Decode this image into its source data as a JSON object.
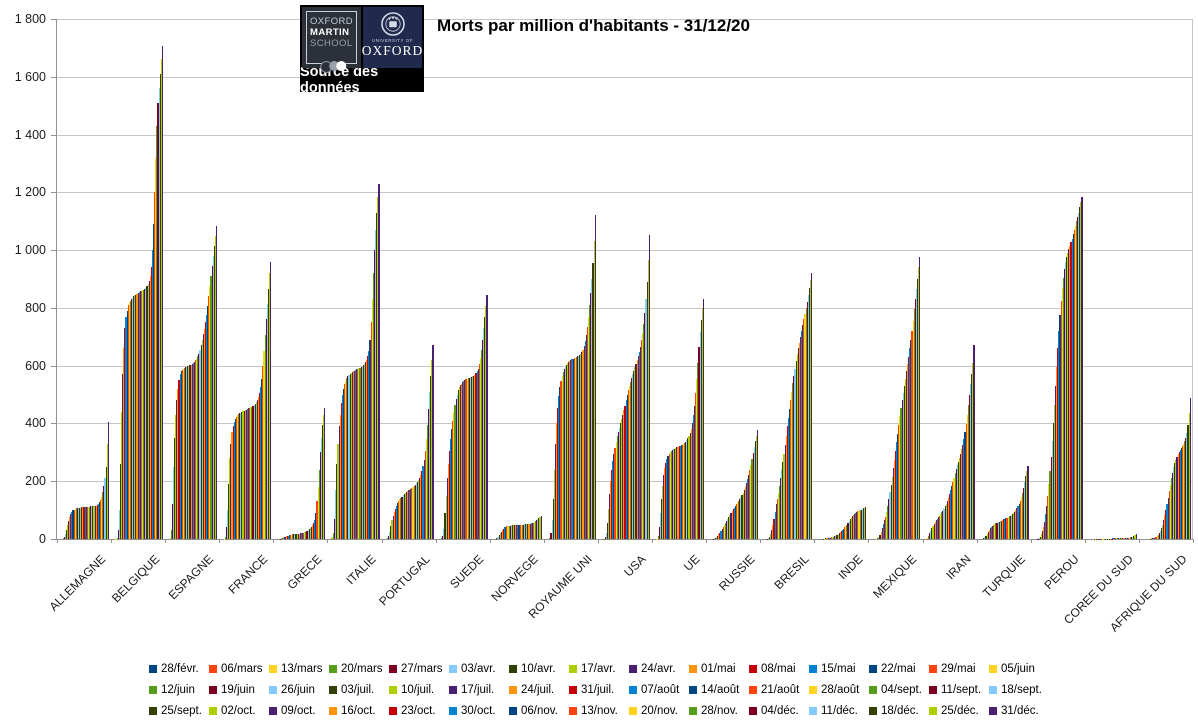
{
  "title": "Morts par million d'habitants - 31/12/20",
  "logo": {
    "line1": "OXFORD",
    "line2": "MARTIN",
    "line3": "SCHOOL",
    "university_of": "UNIVERSITY OF",
    "oxford": "OXFORD",
    "caption": "Source des données"
  },
  "y_axis": {
    "tick_labels": [
      "1 800",
      "1 600",
      "1 400",
      "1 200",
      "1 000",
      "800",
      "600",
      "400",
      "200",
      "0"
    ],
    "min": 0,
    "max": 1800,
    "step": 200
  },
  "palette": [
    "#004586",
    "#FF420E",
    "#FFD320",
    "#579D1C",
    "#7E0021",
    "#83CAFF",
    "#314004",
    "#AECF00",
    "#4B1F6F",
    "#FF950E",
    "#C5000B",
    "#0084D1"
  ],
  "chart_data": {
    "type": "bar",
    "title": "Morts par million d'habitants - 31/12/20",
    "xlabel": "",
    "ylabel": "",
    "ylim": [
      0,
      1800
    ],
    "grid": true,
    "legend_position": "bottom",
    "categories": [
      "ALLEMAGNE",
      "BELGIQUE",
      "ESPAGNE",
      "FRANCE",
      "GRECE",
      "ITALIE",
      "PORTUGAL",
      "SUEDE",
      "NORVEGE",
      "ROYAUME UNI",
      "USA",
      "UE",
      "RUSSIE",
      "BRESIL",
      "INDE",
      "MEXIQUE",
      "IRAN",
      "TURQUIE",
      "PEROU",
      "COREE DU SUD",
      "AFRIQUE DU SUD"
    ],
    "series_labels": [
      "28/févr.",
      "06/mars",
      "13/mars",
      "20/mars",
      "27/mars",
      "03/avr.",
      "10/avr.",
      "17/avr.",
      "24/avr.",
      "01/mai",
      "08/mai",
      "15/mai",
      "22/mai",
      "29/mai",
      "05/juin",
      "12/juin",
      "19/juin",
      "26/juin",
      "03/juil.",
      "10/juil.",
      "17/juil.",
      "24/juil.",
      "31/juil.",
      "07/août",
      "14/août",
      "21/août",
      "28/août",
      "04/sept.",
      "11/sept.",
      "18/sept.",
      "25/sept.",
      "02/oct.",
      "09/oct.",
      "16/oct.",
      "23/oct.",
      "30/oct.",
      "06/nov.",
      "13/nov.",
      "20/nov.",
      "28/nov.",
      "04/déc.",
      "11/déc.",
      "18/déc.",
      "25/déc.",
      "31/déc."
    ],
    "values": {
      "ALLEMAGNE": [
        0,
        0,
        0,
        2,
        7,
        16,
        31,
        48,
        63,
        75,
        87,
        94,
        99,
        102,
        104,
        106,
        107,
        108,
        109,
        109,
        110,
        110,
        111,
        111,
        111,
        112,
        112,
        112,
        113,
        113,
        113,
        114,
        115,
        116,
        118,
        121,
        127,
        135,
        147,
        163,
        183,
        210,
        250,
        330,
        405
      ],
      "BELGIQUE": [
        0,
        0,
        1,
        4,
        30,
        100,
        260,
        440,
        570,
        660,
        730,
        770,
        790,
        810,
        820,
        825,
        830,
        835,
        840,
        843,
        846,
        849,
        852,
        855,
        857,
        859,
        861,
        863,
        866,
        870,
        875,
        882,
        892,
        910,
        940,
        1000,
        1090,
        1200,
        1320,
        1430,
        1510,
        1560,
        1610,
        1660,
        1705
      ],
      "ESPAGNE": [
        0,
        0,
        2,
        30,
        120,
        250,
        350,
        430,
        480,
        520,
        550,
        570,
        580,
        585,
        590,
        592,
        594,
        596,
        598,
        600,
        602,
        604,
        607,
        610,
        614,
        618,
        624,
        632,
        642,
        655,
        670,
        688,
        708,
        728,
        750,
        775,
        805,
        840,
        875,
        910,
        945,
        980,
        1015,
        1050,
        1082
      ],
      "FRANCE": [
        0,
        0,
        1,
        8,
        40,
        100,
        190,
        280,
        330,
        370,
        390,
        405,
        415,
        422,
        428,
        432,
        435,
        437,
        440,
        442,
        444,
        446,
        448,
        450,
        452,
        454,
        456,
        458,
        461,
        464,
        468,
        475,
        482,
        492,
        505,
        525,
        555,
        600,
        650,
        705,
        760,
        815,
        865,
        920,
        958
      ],
      "GRECE": [
        0,
        0,
        0,
        1,
        1,
        2,
        4,
        6,
        8,
        10,
        11,
        12,
        13,
        14,
        15,
        16,
        17,
        17,
        18,
        18,
        19,
        19,
        20,
        20,
        21,
        22,
        23,
        25,
        28,
        30,
        33,
        37,
        41,
        47,
        55,
        65,
        90,
        130,
        180,
        240,
        300,
        350,
        395,
        430,
        455
      ],
      "ITALIE": [
        0,
        2,
        6,
        20,
        70,
        170,
        260,
        330,
        390,
        430,
        470,
        500,
        520,
        535,
        548,
        557,
        563,
        568,
        572,
        575,
        578,
        580,
        583,
        585,
        587,
        589,
        591,
        593,
        596,
        599,
        602,
        606,
        612,
        620,
        632,
        650,
        690,
        750,
        830,
        920,
        1000,
        1070,
        1130,
        1185,
        1228
      ],
      "PORTUGAL": [
        0,
        0,
        0,
        2,
        10,
        25,
        45,
        65,
        80,
        95,
        105,
        115,
        125,
        132,
        138,
        143,
        147,
        151,
        155,
        158,
        162,
        165,
        168,
        171,
        174,
        177,
        180,
        184,
        188,
        193,
        198,
        204,
        212,
        222,
        235,
        252,
        275,
        305,
        345,
        395,
        450,
        510,
        565,
        620,
        672
      ],
      "SUEDE": [
        0,
        0,
        0,
        2,
        10,
        35,
        90,
        150,
        210,
        260,
        305,
        345,
        380,
        410,
        440,
        465,
        485,
        500,
        515,
        525,
        532,
        538,
        543,
        547,
        550,
        553,
        555,
        557,
        559,
        560,
        562,
        564,
        566,
        569,
        573,
        580,
        590,
        605,
        625,
        655,
        690,
        730,
        768,
        805,
        843
      ],
      "NORVEGE": [
        0,
        0,
        0,
        1,
        4,
        8,
        14,
        20,
        26,
        31,
        36,
        40,
        43,
        44,
        45,
        46,
        46,
        47,
        47,
        47,
        48,
        48,
        48,
        49,
        49,
        49,
        50,
        50,
        50,
        51,
        51,
        52,
        52,
        53,
        53,
        54,
        55,
        57,
        59,
        62,
        65,
        68,
        72,
        76,
        80
      ],
      "ROYAUME UNI": [
        0,
        0,
        0,
        3,
        20,
        65,
        140,
        240,
        330,
        400,
        455,
        495,
        525,
        548,
        565,
        578,
        588,
        596,
        603,
        608,
        612,
        616,
        619,
        622,
        624,
        626,
        628,
        630,
        632,
        635,
        638,
        642,
        648,
        656,
        668,
        684,
        706,
        735,
        770,
        810,
        852,
        900,
        955,
        1030,
        1122
      ],
      "USA": [
        0,
        0,
        0,
        1,
        6,
        20,
        55,
        105,
        155,
        200,
        240,
        270,
        295,
        315,
        335,
        355,
        370,
        385,
        400,
        415,
        430,
        445,
        462,
        480,
        498,
        515,
        530,
        545,
        558,
        570,
        582,
        594,
        606,
        618,
        632,
        648,
        666,
        688,
        714,
        745,
        782,
        830,
        890,
        965,
        1053
      ],
      "UE": [
        0,
        0,
        1,
        10,
        40,
        90,
        140,
        185,
        220,
        245,
        263,
        277,
        287,
        294,
        300,
        304,
        308,
        311,
        313,
        315,
        317,
        319,
        321,
        323,
        325,
        327,
        330,
        333,
        337,
        342,
        348,
        356,
        367,
        382,
        402,
        428,
        462,
        505,
        555,
        610,
        665,
        715,
        758,
        798,
        830
      ],
      "RUSSIE": [
        0,
        0,
        0,
        0,
        1,
        2,
        4,
        7,
        11,
        16,
        22,
        28,
        35,
        42,
        49,
        56,
        63,
        70,
        77,
        84,
        91,
        97,
        103,
        109,
        115,
        121,
        127,
        133,
        139,
        146,
        153,
        161,
        170,
        181,
        193,
        207,
        222,
        239,
        257,
        277,
        297,
        318,
        338,
        358,
        378
      ],
      "BRESIL": [
        0,
        0,
        0,
        0,
        1,
        3,
        8,
        18,
        32,
        50,
        70,
        95,
        120,
        137,
        160,
        185,
        212,
        240,
        268,
        295,
        325,
        355,
        390,
        420,
        450,
        480,
        510,
        540,
        565,
        590,
        615,
        640,
        660,
        680,
        700,
        720,
        740,
        760,
        780,
        800,
        820,
        845,
        870,
        895,
        920
      ],
      "INDE": [
        0,
        0,
        0,
        0,
        0,
        0,
        1,
        1,
        2,
        2,
        3,
        4,
        5,
        6,
        7,
        8,
        10,
        12,
        14,
        17,
        20,
        23,
        27,
        31,
        35,
        40,
        45,
        50,
        56,
        62,
        68,
        74,
        79,
        84,
        88,
        91,
        94,
        96,
        98,
        100,
        102,
        104,
        106,
        108,
        110
      ],
      "MEXIQUE": [
        0,
        0,
        0,
        0,
        0,
        1,
        3,
        8,
        15,
        25,
        38,
        52,
        66,
        77,
        95,
        115,
        138,
        162,
        188,
        215,
        245,
        275,
        305,
        335,
        365,
        395,
        425,
        455,
        480,
        505,
        530,
        555,
        580,
        605,
        630,
        660,
        690,
        720,
        755,
        795,
        830,
        865,
        900,
        940,
        976
      ],
      "IRAN": [
        0,
        1,
        5,
        12,
        20,
        29,
        38,
        46,
        53,
        60,
        66,
        71,
        76,
        81,
        86,
        92,
        98,
        105,
        113,
        122,
        132,
        143,
        155,
        168,
        182,
        197,
        212,
        227,
        241,
        255,
        268,
        281,
        295,
        310,
        327,
        347,
        370,
        398,
        430,
        465,
        500,
        535,
        570,
        610,
        672
      ],
      "TURQUIE": [
        0,
        0,
        0,
        1,
        2,
        6,
        12,
        19,
        26,
        32,
        37,
        41,
        45,
        48,
        51,
        54,
        56,
        58,
        60,
        62,
        64,
        66,
        68,
        70,
        72,
        74,
        76,
        78,
        81,
        84,
        87,
        91,
        95,
        100,
        106,
        113,
        122,
        133,
        146,
        161,
        178,
        197,
        217,
        237,
        253
      ],
      "PEROU": [
        0,
        0,
        0,
        0,
        1,
        3,
        8,
        16,
        28,
        42,
        60,
        85,
        115,
        150,
        190,
        235,
        285,
        340,
        400,
        465,
        530,
        595,
        660,
        720,
        775,
        825,
        870,
        905,
        935,
        958,
        975,
        990,
        1003,
        1015,
        1027,
        1040,
        1055,
        1070,
        1085,
        1100,
        1115,
        1130,
        1148,
        1165,
        1183
      ],
      "COREE DU SUD": [
        0,
        0,
        0,
        0,
        0,
        1,
        1,
        1,
        1,
        1,
        1,
        1,
        1,
        1,
        1,
        1,
        1,
        1,
        1,
        1,
        1,
        1,
        1,
        2,
        2,
        2,
        2,
        2,
        2,
        2,
        2,
        2,
        2,
        3,
        3,
        3,
        4,
        4,
        5,
        6,
        7,
        8,
        10,
        13,
        17
      ],
      "AFRIQUE DU SUD": [
        0,
        0,
        0,
        0,
        0,
        0,
        0,
        1,
        1,
        2,
        3,
        4,
        5,
        7,
        10,
        14,
        20,
        28,
        38,
        50,
        65,
        82,
        100,
        120,
        142,
        165,
        188,
        210,
        230,
        248,
        263,
        275,
        285,
        293,
        300,
        307,
        314,
        321,
        329,
        338,
        350,
        368,
        395,
        435,
        487
      ]
    }
  }
}
